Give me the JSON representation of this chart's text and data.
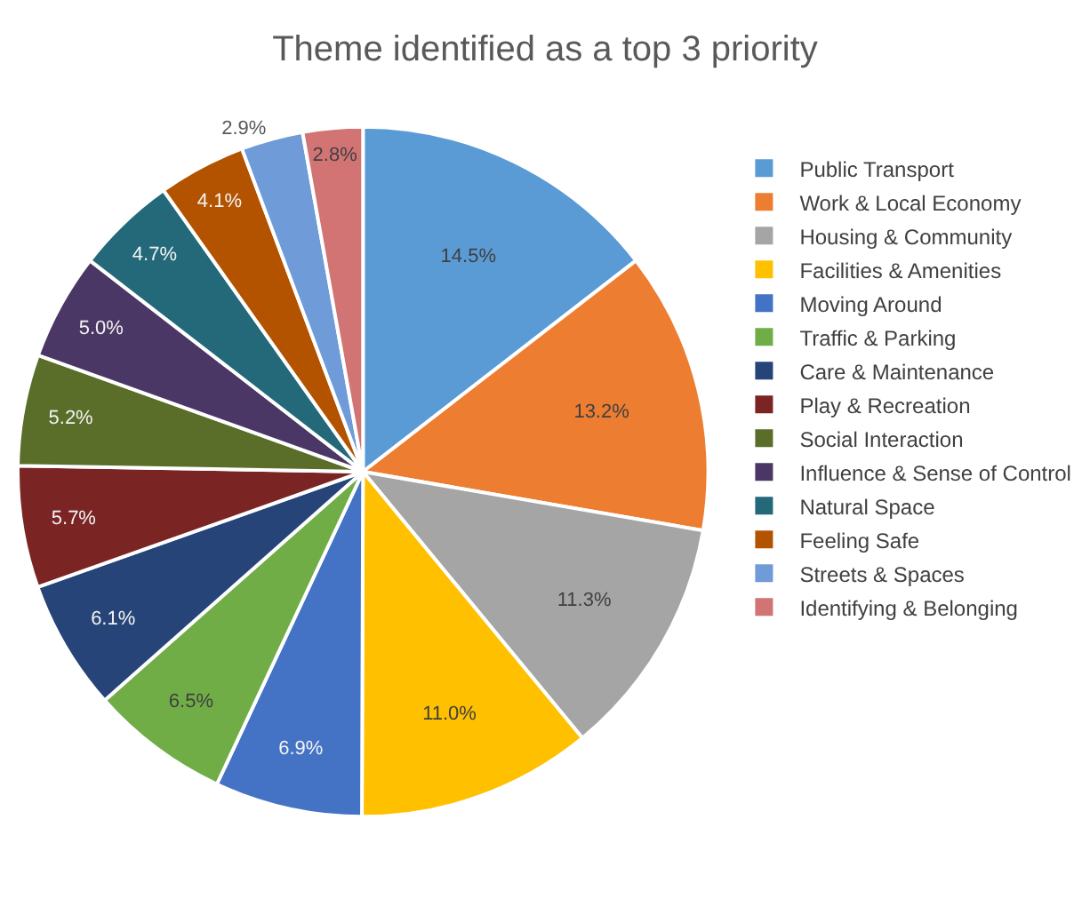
{
  "chart_data": {
    "type": "pie",
    "title": "Theme identified as a top 3 priority",
    "categories": [
      "Public Transport",
      "Work & Local Economy",
      "Housing & Community",
      "Facilities & Amenities",
      "Moving Around",
      "Traffic & Parking",
      "Care & Maintenance",
      "Play & Recreation",
      "Social Interaction",
      "Influence & Sense of Control",
      "Natural Space",
      "Feeling Safe",
      "Streets & Spaces",
      "Identifying & Belonging"
    ],
    "values": [
      14.5,
      13.2,
      11.3,
      11.0,
      6.9,
      6.5,
      6.1,
      5.7,
      5.2,
      5.0,
      4.7,
      4.1,
      2.9,
      2.8
    ],
    "value_labels": [
      "14.5%",
      "13.2%",
      "11.3%",
      "11.0%",
      "6.9%",
      "6.5%",
      "6.1%",
      "5.7%",
      "5.2%",
      "5.0%",
      "4.7%",
      "4.1%",
      "2.9%",
      "2.8%"
    ],
    "colors": [
      "#5b9bd5",
      "#ed7d31",
      "#a5a5a5",
      "#ffc000",
      "#4472c4",
      "#70ad47",
      "#264478",
      "#7b2424",
      "#5a6e2a",
      "#4b3765",
      "#23697a",
      "#b35300",
      "#6f9bd8",
      "#d27474"
    ],
    "legend": "right"
  }
}
